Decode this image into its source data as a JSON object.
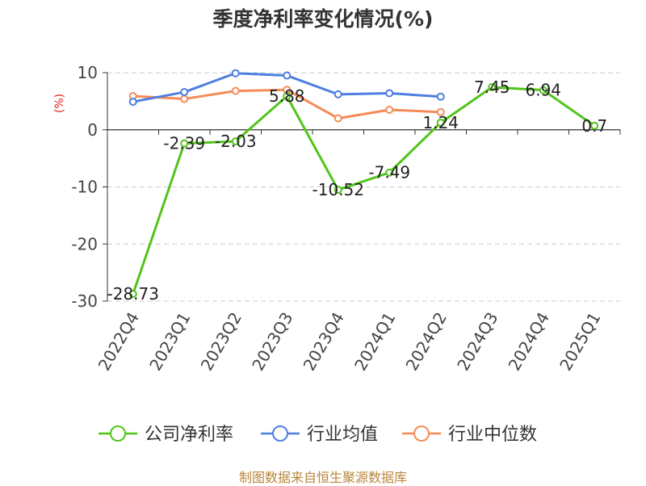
{
  "chart_data": {
    "type": "line",
    "title": "季度净利率变化情况(%)",
    "ylabel": "(%)",
    "xlabel": "",
    "categories": [
      "2022Q4",
      "2023Q1",
      "2023Q2",
      "2023Q3",
      "2023Q4",
      "2024Q1",
      "2024Q2",
      "2024Q3",
      "2024Q4",
      "2025Q1"
    ],
    "ylim": [
      -30,
      10
    ],
    "yticks": [
      "10",
      "0",
      "-10",
      "-20",
      "-30"
    ],
    "grid": true,
    "legend_position": "bottom",
    "series": [
      {
        "name": "公司净利率",
        "color": "#52c41a",
        "values": [
          -28.73,
          -2.39,
          -2.03,
          5.88,
          -10.52,
          -7.49,
          1.24,
          7.45,
          6.94,
          0.7
        ],
        "data_labels": [
          "-28.73",
          "-2.39",
          "-2.03",
          "5.88",
          "-10.52",
          "-7.49",
          "1.24",
          "7.45",
          "6.94",
          "0.7"
        ]
      },
      {
        "name": "行业均值",
        "color": "#4f7fe0",
        "values": [
          4.9,
          6.6,
          9.9,
          9.5,
          6.2,
          6.4,
          5.8,
          null,
          null,
          null
        ]
      },
      {
        "name": "行业中位数",
        "color": "#f58b57",
        "values": [
          5.9,
          5.4,
          6.8,
          7.0,
          2.0,
          3.5,
          3.1,
          null,
          null,
          null
        ]
      }
    ],
    "source": "制图数据来自恒生聚源数据库"
  }
}
